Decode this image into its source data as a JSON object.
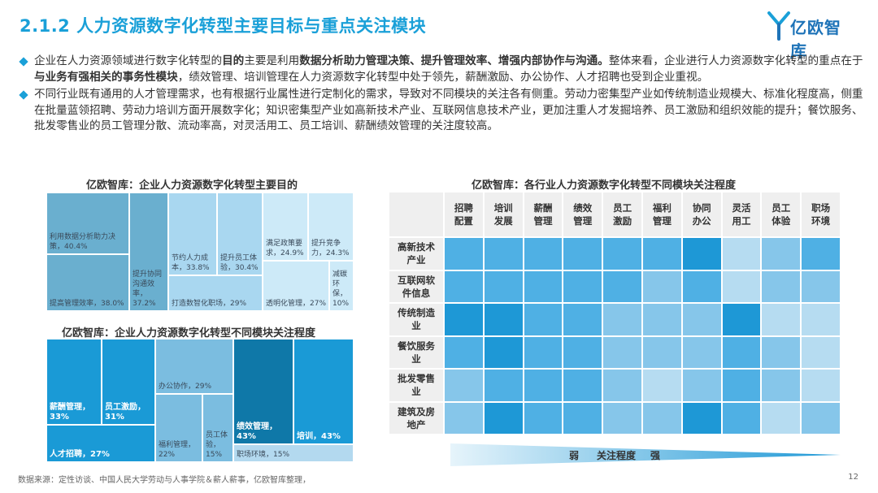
{
  "header": {
    "title": "2.1.2 人力资源数字化转型主要目标与重点关注模块",
    "logo_text": "亿欧智库"
  },
  "bullets": [
    {
      "parts": [
        {
          "t": "企业在人力资源领域进行数字化转型的",
          "b": false
        },
        {
          "t": "目的",
          "b": true
        },
        {
          "t": "主要是利用",
          "b": false
        },
        {
          "t": "数据分析助力管理决策、提升管理效率、增强内部协作与沟通。",
          "b": true
        },
        {
          "t": "整体来看，企业进行人力资源数字化转型的重点在于",
          "b": false
        },
        {
          "t": "与业务有强相关的事务性模块",
          "b": true
        },
        {
          "t": "，绩效管理、培训管理在人力资源数字化转型中处于领先，薪酬激励、办公协作、人才招聘也受到企业重视。",
          "b": false
        }
      ]
    },
    {
      "parts": [
        {
          "t": "不同行业既有通用的人才管理需求，也有根据行业属性进行定制化的需求，导致对不同模块的关注各有侧重。劳动力密集型产业如传统制造业规模大、标准化程度高，侧重在批量蓝领招聘、劳动力培训方面开展数字化；知识密集型产业如高新技术产业、互联网信息技术产业，更加注重人才发掘培养、员工激励和组织效能的提升；餐饮服务、批发零售业的员工管理分散、流动率高，对灵活用工、员工培训、薪酬绩效管理的关注度较高。",
          "b": false
        }
      ]
    }
  ],
  "chart_data": [
    {
      "type": "treemap",
      "title": "亿欧智库：企业人力资源数字化转型主要目的",
      "items": [
        {
          "label": "利用数据分析助力决策",
          "value": "40.4%",
          "color": "#6aafcf"
        },
        {
          "label": "提高管理效率",
          "value": "38.0%",
          "color": "#6aafcf"
        },
        {
          "label": "提升协同沟通效率",
          "value": "37.2%",
          "color": "#6aafcf"
        },
        {
          "label": "节约人力成本",
          "value": "33.8%",
          "color": "#a9d7f0"
        },
        {
          "label": "提升员工体验",
          "value": "30.4%",
          "color": "#a9d7f0"
        },
        {
          "label": "打造数智化职场",
          "value": "29%",
          "color": "#a9d7f0"
        },
        {
          "label": "满足政策要求",
          "value": "24.9%",
          "color": "#cdeaf8"
        },
        {
          "label": "提升竞争力",
          "value": "24.3%",
          "color": "#cdeaf8"
        },
        {
          "label": "透明化管理",
          "value": "27%",
          "color": "#cdeaf8"
        },
        {
          "label": "减碳环保",
          "value": "10%",
          "color": "#cdeaf8"
        }
      ]
    },
    {
      "type": "treemap",
      "title": "亿欧智库：企业人力资源数字化转型不同模块关注程度",
      "items": [
        {
          "label": "薪酬管理",
          "value": "33%",
          "color": "#1a9ad6"
        },
        {
          "label": "员工激励",
          "value": "31%",
          "color": "#1a9ad6"
        },
        {
          "label": "人才招聘",
          "value": "27%",
          "color": "#1a9ad6"
        },
        {
          "label": "办公协作",
          "value": "29%",
          "color": "#7bbde0"
        },
        {
          "label": "福利管理",
          "value": "22%",
          "color": "#7bbde0"
        },
        {
          "label": "员工体验",
          "value": "15%",
          "color": "#7bbde0"
        },
        {
          "label": "绩效管理",
          "value": "43%",
          "color": "#0f78a8"
        },
        {
          "label": "培训",
          "value": "43%",
          "color": "#1a9ad6"
        },
        {
          "label": "职场环境",
          "value": "15%",
          "color": "#b3d9ef"
        }
      ]
    },
    {
      "type": "heatmap",
      "title": "亿欧智库：各行业人力资源数字化转型不同模块关注程度",
      "columns": [
        "招聘配置",
        "培训发展",
        "薪酬管理",
        "绩效管理",
        "员工激励",
        "福利管理",
        "协同办公",
        "灵活用工",
        "员工体验",
        "职场环境"
      ],
      "rows": [
        "高新技术产业",
        "互联网软件信息",
        "传统制造业",
        "餐饮服务业",
        "批发零售业",
        "建筑及房地产"
      ],
      "levels": [
        [
          3,
          3,
          3,
          3,
          3,
          3,
          4,
          1,
          2,
          3
        ],
        [
          3,
          3,
          3,
          3,
          3,
          2,
          3,
          1,
          2,
          2
        ],
        [
          4,
          4,
          3,
          3,
          2,
          2,
          2,
          4,
          1,
          1
        ],
        [
          3,
          4,
          3,
          3,
          2,
          2,
          2,
          3,
          2,
          1
        ],
        [
          2,
          3,
          3,
          3,
          2,
          1,
          2,
          3,
          2,
          1
        ],
        [
          2,
          4,
          3,
          3,
          2,
          2,
          4,
          3,
          1,
          2
        ]
      ],
      "level_colors": [
        "#ffffff",
        "#b6dcf1",
        "#86c6ea",
        "#4fb0e4",
        "#1e98d6"
      ],
      "legend": {
        "low": "弱",
        "label": "关注程度",
        "high": "强"
      }
    }
  ],
  "footer": {
    "source": "数据来源：定性访谈、中国人民大学劳动与人事学院＆薪人薪事，亿欧智库整理，",
    "page": "12"
  }
}
